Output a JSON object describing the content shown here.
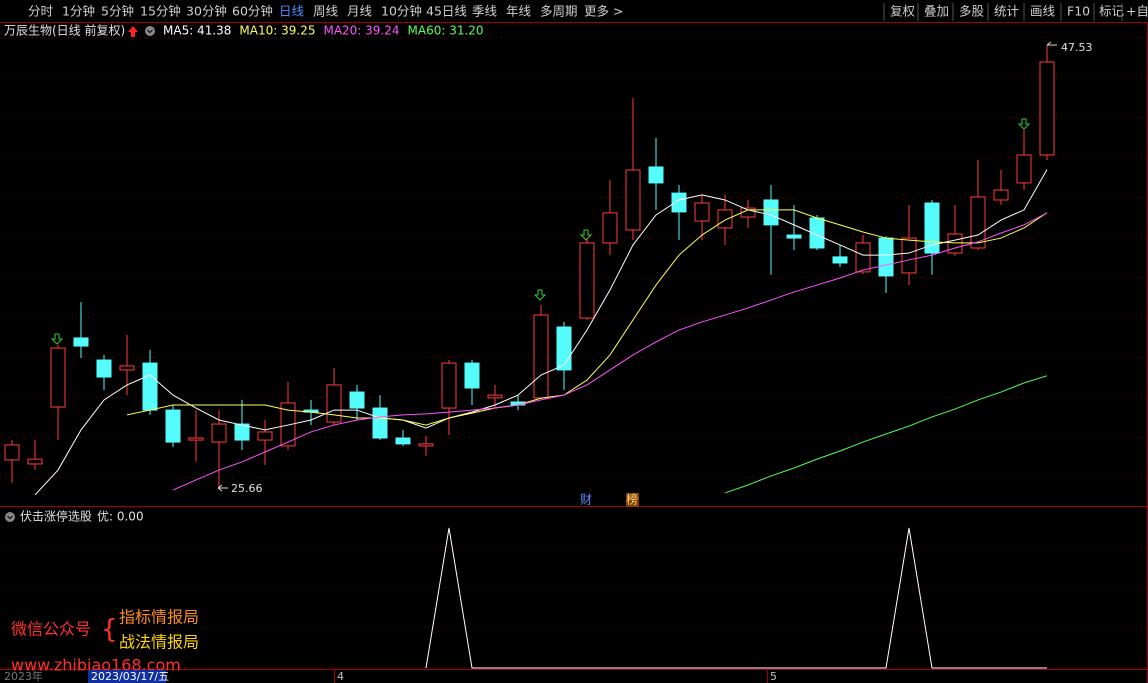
{
  "toolbar": {
    "left": [
      "分时",
      "1分钟",
      "5分钟",
      "15分钟",
      "30分钟",
      "60分钟",
      "日线",
      "周线",
      "月线",
      "10分钟",
      "45日线",
      "季线",
      "年线",
      "多周期",
      "更多 >"
    ],
    "right": [
      "复权",
      "叠加",
      "多股",
      "统计",
      "画线",
      "F10",
      "标记",
      "+自"
    ]
  },
  "chart_data": [
    {
      "type": "candlestick",
      "title": "万辰生物(日线 前复权)",
      "open": [
        27.05,
        26.85,
        29.66,
        33.07,
        31.98,
        31.49,
        31.83,
        29.51,
        28.03,
        27.93,
        28.82,
        28.03,
        27.74,
        29.51,
        28.92,
        30.4,
        29.61,
        28.13,
        27.74,
        29.61,
        31.83,
        30.11,
        29.91,
        30.11,
        33.61,
        34.05,
        37.76,
        38.4,
        41.51,
        40.22,
        38.84,
        38.5,
        39.04,
        39.88,
        38.15,
        38.99,
        37.07,
        36.33,
        38.0,
        36.28,
        39.73,
        37.26,
        37.51,
        39.88,
        40.72,
        42.1
      ],
      "high": [
        28.03,
        28.03,
        32.72,
        34.84,
        32.23,
        33.22,
        32.48,
        29.76,
        29.51,
        29.51,
        30.01,
        29.02,
        30.9,
        30.01,
        31.59,
        30.75,
        30.25,
        28.53,
        28.23,
        31.98,
        31.98,
        30.75,
        30.25,
        34.7,
        33.86,
        38.0,
        40.87,
        44.91,
        42.94,
        40.62,
        40.13,
        40.13,
        39.88,
        40.62,
        39.63,
        39.14,
        37.66,
        38.15,
        38.1,
        39.63,
        39.88,
        39.63,
        41.85,
        41.36,
        43.33,
        47.53
      ],
      "low": [
        25.91,
        26.55,
        28.03,
        32.08,
        30.5,
        30.25,
        29.27,
        27.69,
        26.95,
        25.66,
        27.54,
        26.8,
        27.54,
        28.77,
        28.77,
        29.02,
        28.03,
        27.74,
        27.24,
        28.28,
        29.76,
        29.61,
        29.51,
        30.01,
        30.5,
        33.96,
        37.16,
        37.9,
        39.39,
        37.9,
        37.9,
        37.66,
        38.5,
        36.18,
        37.41,
        37.41,
        36.57,
        36.23,
        35.29,
        35.68,
        36.18,
        37.12,
        37.41,
        39.63,
        40.37,
        41.85
      ],
      "close": [
        27.79,
        27.09,
        32.57,
        32.67,
        31.14,
        31.69,
        29.51,
        27.93,
        28.13,
        28.82,
        28.03,
        28.43,
        29.86,
        29.41,
        30.75,
        29.61,
        28.13,
        27.84,
        27.84,
        31.83,
        30.6,
        30.25,
        29.76,
        34.2,
        31.49,
        37.76,
        39.24,
        41.36,
        40.72,
        39.29,
        39.73,
        39.39,
        39.48,
        38.65,
        38.0,
        37.51,
        36.77,
        37.76,
        36.13,
        38.0,
        37.26,
        38.2,
        40.03,
        40.37,
        42.1,
        46.69
      ],
      "up_color": "#ff3c3c",
      "down_color": "#54fcfc",
      "ylim": [
        24,
        49
      ],
      "series": [
        {
          "name": "MA5: 41.38",
          "color": "#ffffff",
          "values": [
            null,
            25.32,
            26.55,
            28.53,
            30.01,
            30.75,
            31.24,
            30.25,
            29.61,
            29.02,
            28.77,
            28.53,
            28.77,
            29.02,
            29.51,
            29.51,
            29.12,
            29.02,
            28.62,
            29.12,
            29.41,
            29.76,
            30.25,
            31.24,
            31.73,
            33.46,
            35.44,
            37.66,
            39.14,
            39.88,
            40.13,
            39.88,
            39.39,
            39.14,
            38.65,
            38.15,
            37.66,
            37.16,
            37.16,
            37.26,
            37.66,
            37.9,
            38.15,
            38.89,
            39.39,
            41.38
          ]
        },
        {
          "name": "MA10: 39.25",
          "color": "#ffff54",
          "values": [
            null,
            null,
            null,
            null,
            null,
            29.27,
            29.51,
            29.76,
            29.76,
            29.76,
            29.76,
            29.76,
            29.51,
            29.41,
            29.27,
            29.12,
            29.12,
            29.02,
            28.77,
            29.12,
            29.36,
            29.61,
            29.76,
            30.1,
            30.25,
            30.99,
            32.23,
            33.96,
            35.68,
            37.16,
            38.15,
            38.89,
            39.39,
            39.39,
            39.39,
            38.99,
            38.65,
            38.3,
            38.0,
            37.9,
            37.81,
            37.76,
            37.76,
            38.0,
            38.5,
            39.25
          ]
        },
        {
          "name": "MA20: 39.24",
          "color": "#ff54ff",
          "values": [
            null,
            null,
            null,
            null,
            null,
            null,
            null,
            25.56,
            26.06,
            26.55,
            26.95,
            27.44,
            27.93,
            28.43,
            28.77,
            29.02,
            29.17,
            29.27,
            29.32,
            29.41,
            29.51,
            29.61,
            29.76,
            30.01,
            30.25,
            30.75,
            31.49,
            32.23,
            32.87,
            33.46,
            33.86,
            34.2,
            34.55,
            34.94,
            35.34,
            35.68,
            36.03,
            36.42,
            36.67,
            36.92,
            37.16,
            37.51,
            37.81,
            38.25,
            38.65,
            39.24
          ]
        },
        {
          "name": "MA60: 31.20",
          "color": "#54ff54",
          "values": [
            null,
            null,
            null,
            null,
            null,
            null,
            null,
            null,
            null,
            null,
            null,
            null,
            null,
            null,
            null,
            null,
            null,
            null,
            null,
            null,
            null,
            null,
            null,
            null,
            null,
            null,
            null,
            null,
            null,
            null,
            null,
            25.42,
            25.81,
            26.26,
            26.65,
            27.09,
            27.49,
            27.93,
            28.33,
            28.72,
            29.17,
            29.56,
            30.01,
            30.4,
            30.85,
            31.2
          ]
        }
      ],
      "event_tags": [
        "财",
        "榜"
      ]
    },
    {
      "type": "line",
      "title": "伏击涨停选股",
      "subtitle": "优: 0.00",
      "color": "#ffffff",
      "ylim": [
        0,
        1
      ],
      "values": [
        null,
        null,
        null,
        null,
        null,
        null,
        null,
        null,
        null,
        null,
        null,
        null,
        null,
        null,
        null,
        null,
        null,
        null,
        0,
        1,
        0,
        0,
        0,
        0,
        0,
        0,
        0,
        0,
        0,
        0,
        0,
        0,
        0,
        0,
        0,
        0,
        0,
        0,
        0,
        1,
        0,
        0,
        0,
        0,
        0,
        0
      ]
    }
  ],
  "watermark": {
    "label": "微信公众号",
    "brace": "{",
    "lines": [
      "指标情报局",
      "战法情报局"
    ],
    "url": "www.zhibiao168.com"
  },
  "x_axis": {
    "year": "2023年",
    "cursor_date": "2023/03/17/五",
    "months": [
      "4",
      "5"
    ]
  }
}
